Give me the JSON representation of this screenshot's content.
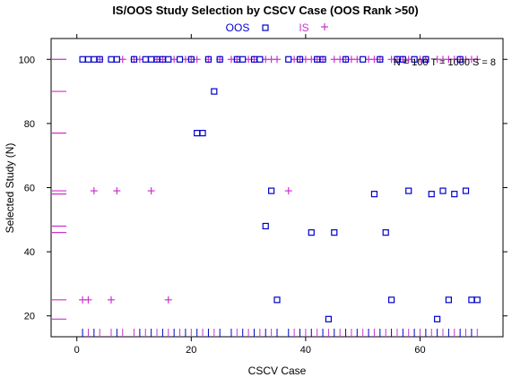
{
  "chart_data": {
    "type": "scatter",
    "title": "IS/OOS Study Selection by CSCV Case (OOS Rank >50)",
    "xlabel": "CSCV Case",
    "ylabel": "Selected Study (N)",
    "xlim": [
      -4.5,
      74.5
    ],
    "ylim": [
      13.5,
      106.5
    ],
    "xticks": [
      0,
      20,
      40,
      60
    ],
    "yticks": [
      20,
      40,
      60,
      80,
      100
    ],
    "grid": false,
    "legend_position": "top-center",
    "annotation": "N = 100  T = 1000  S = 8",
    "series": [
      {
        "name": "OOS",
        "marker": "square",
        "color": "#0000cc",
        "points": [
          [
            1,
            100
          ],
          [
            2,
            100
          ],
          [
            3,
            100
          ],
          [
            4,
            100
          ],
          [
            6,
            100
          ],
          [
            7,
            100
          ],
          [
            10,
            100
          ],
          [
            12,
            100
          ],
          [
            13,
            100
          ],
          [
            14,
            100
          ],
          [
            15,
            100
          ],
          [
            16,
            100
          ],
          [
            18,
            100
          ],
          [
            20,
            100
          ],
          [
            21,
            77
          ],
          [
            22,
            77
          ],
          [
            23,
            100
          ],
          [
            24,
            90
          ],
          [
            25,
            100
          ],
          [
            28,
            100
          ],
          [
            29,
            100
          ],
          [
            31,
            100
          ],
          [
            32,
            100
          ],
          [
            33,
            48
          ],
          [
            34,
            59
          ],
          [
            35,
            25
          ],
          [
            37,
            100
          ],
          [
            39,
            100
          ],
          [
            41,
            46
          ],
          [
            42,
            100
          ],
          [
            43,
            100
          ],
          [
            44,
            19
          ],
          [
            45,
            46
          ],
          [
            47,
            100
          ],
          [
            50,
            100
          ],
          [
            52,
            58
          ],
          [
            53,
            100
          ],
          [
            54,
            46
          ],
          [
            55,
            25
          ],
          [
            56,
            100
          ],
          [
            57,
            100
          ],
          [
            58,
            59
          ],
          [
            59,
            100
          ],
          [
            61,
            100
          ],
          [
            62,
            58
          ],
          [
            63,
            19
          ],
          [
            64,
            59
          ],
          [
            65,
            25
          ],
          [
            66,
            58
          ],
          [
            67,
            100
          ],
          [
            68,
            59
          ],
          [
            69,
            25
          ],
          [
            70,
            25
          ]
        ]
      },
      {
        "name": "IS",
        "marker": "plus",
        "color": "#cc33cc",
        "points": [
          [
            1,
            25
          ],
          [
            2,
            25
          ],
          [
            3,
            59
          ],
          [
            4,
            100
          ],
          [
            6,
            25
          ],
          [
            7,
            59
          ],
          [
            8,
            100
          ],
          [
            10,
            100
          ],
          [
            11,
            100
          ],
          [
            13,
            59
          ],
          [
            14,
            100
          ],
          [
            15,
            100
          ],
          [
            16,
            25
          ],
          [
            17,
            100
          ],
          [
            19,
            100
          ],
          [
            20,
            100
          ],
          [
            21,
            100
          ],
          [
            23,
            100
          ],
          [
            25,
            100
          ],
          [
            27,
            100
          ],
          [
            28,
            100
          ],
          [
            30,
            100
          ],
          [
            31,
            100
          ],
          [
            33,
            100
          ],
          [
            34,
            100
          ],
          [
            35,
            100
          ],
          [
            37,
            59
          ],
          [
            38,
            100
          ],
          [
            39,
            100
          ],
          [
            40,
            100
          ],
          [
            41,
            100
          ],
          [
            42,
            100
          ],
          [
            43,
            100
          ],
          [
            45,
            100
          ],
          [
            46,
            100
          ],
          [
            47,
            100
          ],
          [
            48,
            100
          ],
          [
            49,
            100
          ],
          [
            51,
            100
          ],
          [
            52,
            100
          ],
          [
            53,
            100
          ],
          [
            55,
            100
          ],
          [
            56,
            100
          ],
          [
            57,
            100
          ],
          [
            58,
            100
          ],
          [
            60,
            100
          ],
          [
            61,
            100
          ],
          [
            63,
            100
          ],
          [
            64,
            100
          ],
          [
            65,
            100
          ],
          [
            66,
            100
          ],
          [
            67,
            100
          ],
          [
            68,
            100
          ],
          [
            69,
            100
          ],
          [
            70,
            100
          ]
        ]
      }
    ],
    "rug_x": {
      "axis": "bottom",
      "values": [
        1,
        2,
        3,
        4,
        6,
        7,
        8,
        10,
        11,
        12,
        13,
        14,
        15,
        16,
        17,
        18,
        19,
        20,
        21,
        22,
        23,
        24,
        25,
        27,
        28,
        29,
        30,
        31,
        32,
        33,
        34,
        35,
        37,
        38,
        39,
        40,
        41,
        42,
        43,
        44,
        45,
        46,
        47,
        48,
        49,
        50,
        51,
        52,
        53,
        54,
        55,
        56,
        57,
        58,
        59,
        60,
        61,
        62,
        63,
        64,
        65,
        66,
        67,
        68,
        69,
        70
      ]
    },
    "rug_y": {
      "axis": "left",
      "values": [
        19,
        25,
        46,
        48,
        58,
        59,
        77,
        90,
        100
      ]
    }
  }
}
